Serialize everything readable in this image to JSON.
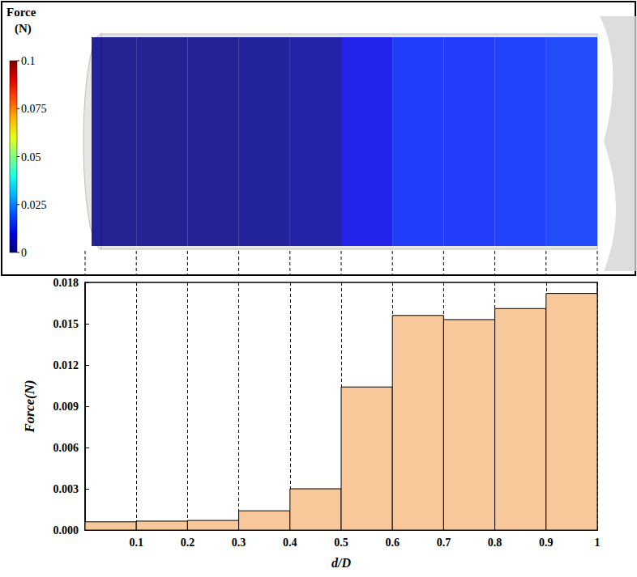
{
  "chart_data": {
    "type": "bar",
    "x_label": "d/D",
    "y_label": "Force(N)",
    "bins": [
      0,
      0.1,
      0.2,
      0.3,
      0.4,
      0.5,
      0.6,
      0.7,
      0.8,
      0.9,
      1
    ],
    "values": [
      0.0006,
      0.00065,
      0.0007,
      0.0014,
      0.003,
      0.0104,
      0.0156,
      0.0153,
      0.0161,
      0.0172
    ],
    "color": "#f8c89a",
    "xlim": [
      0,
      1
    ],
    "xticks": [
      0.1,
      0.2,
      0.3,
      0.4,
      0.5,
      0.6,
      0.7,
      0.8,
      0.9,
      1
    ],
    "ylim": [
      0,
      0.018
    ],
    "yticks": [
      {
        "value": 0,
        "label": "0.000"
      },
      {
        "value": 0.003,
        "label": "0.003"
      },
      {
        "value": 0.006,
        "label": "0.006"
      },
      {
        "value": 0.009,
        "label": "0.009"
      },
      {
        "value": 0.012,
        "label": "0.012"
      },
      {
        "value": 0.015,
        "label": "0.015"
      },
      {
        "value": 0.018,
        "label": "0.018"
      }
    ],
    "grid": true,
    "colorbar": {
      "label": "Force (N)",
      "range": [
        0,
        0.1
      ],
      "ticks": [
        0,
        0.025,
        0.05,
        0.075,
        0.1
      ]
    }
  }
}
